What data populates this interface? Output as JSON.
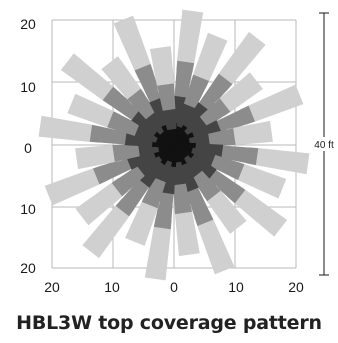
{
  "caption": "HBL3W top coverage pattern",
  "dimension_label": "40 ft",
  "axis_ticks": {
    "y": [
      "20",
      "10",
      "0",
      "10",
      "20"
    ],
    "x": [
      "20",
      "10",
      "0",
      "10",
      "20"
    ]
  },
  "colors": {
    "outer": "#d0d0d0",
    "middle": "#8c8c8c",
    "inner": "#444444",
    "core": "#111111",
    "grid": "#b8b8b8"
  },
  "spokes": [
    {
      "angle": 8,
      "len": 22
    },
    {
      "angle": 22,
      "len": 19
    },
    {
      "angle": 38,
      "len": 22
    },
    {
      "angle": 52,
      "len": 17
    },
    {
      "angle": 68,
      "len": 22
    },
    {
      "angle": 82,
      "len": 16
    },
    {
      "angle": 98,
      "len": 22
    },
    {
      "angle": 112,
      "len": 19
    },
    {
      "angle": 128,
      "len": 22
    },
    {
      "angle": 142,
      "len": 17
    },
    {
      "angle": 158,
      "len": 22
    },
    {
      "angle": 172,
      "len": 18
    },
    {
      "angle": 188,
      "len": 22
    },
    {
      "angle": 202,
      "len": 17
    },
    {
      "angle": 218,
      "len": 22
    },
    {
      "angle": 232,
      "len": 19
    },
    {
      "angle": 248,
      "len": 22
    },
    {
      "angle": 262,
      "len": 16
    },
    {
      "angle": 278,
      "len": 22
    },
    {
      "angle": 292,
      "len": 18
    },
    {
      "angle": 308,
      "len": 22
    },
    {
      "angle": 322,
      "len": 17
    },
    {
      "angle": 338,
      "len": 22
    },
    {
      "angle": 352,
      "len": 16
    }
  ]
}
